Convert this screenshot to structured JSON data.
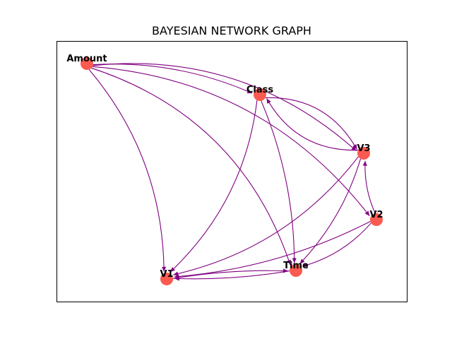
{
  "diagram": {
    "title": "BAYESIAN NETWORK GRAPH",
    "node_color": "#fa5a4f",
    "edge_color": "#800080",
    "nodes": [
      {
        "id": "Amount",
        "label": "Amount"
      },
      {
        "id": "Class",
        "label": "Class"
      },
      {
        "id": "V3",
        "label": "V3"
      },
      {
        "id": "V2",
        "label": "V2"
      },
      {
        "id": "V1",
        "label": "V1"
      },
      {
        "id": "Time",
        "label": "Time"
      }
    ],
    "edges": [
      {
        "from": "Amount",
        "to": "Class"
      },
      {
        "from": "Amount",
        "to": "V3"
      },
      {
        "from": "Amount",
        "to": "V2"
      },
      {
        "from": "Amount",
        "to": "V1"
      },
      {
        "from": "Amount",
        "to": "Time"
      },
      {
        "from": "Class",
        "to": "V3"
      },
      {
        "from": "Class",
        "to": "V1"
      },
      {
        "from": "Class",
        "to": "Time"
      },
      {
        "from": "V3",
        "to": "Class"
      },
      {
        "from": "V3",
        "to": "V1"
      },
      {
        "from": "V3",
        "to": "Time"
      },
      {
        "from": "V2",
        "to": "V3"
      },
      {
        "from": "V2",
        "to": "V1"
      },
      {
        "from": "V2",
        "to": "Time"
      },
      {
        "from": "V1",
        "to": "Time"
      },
      {
        "from": "Time",
        "to": "V1"
      }
    ]
  }
}
